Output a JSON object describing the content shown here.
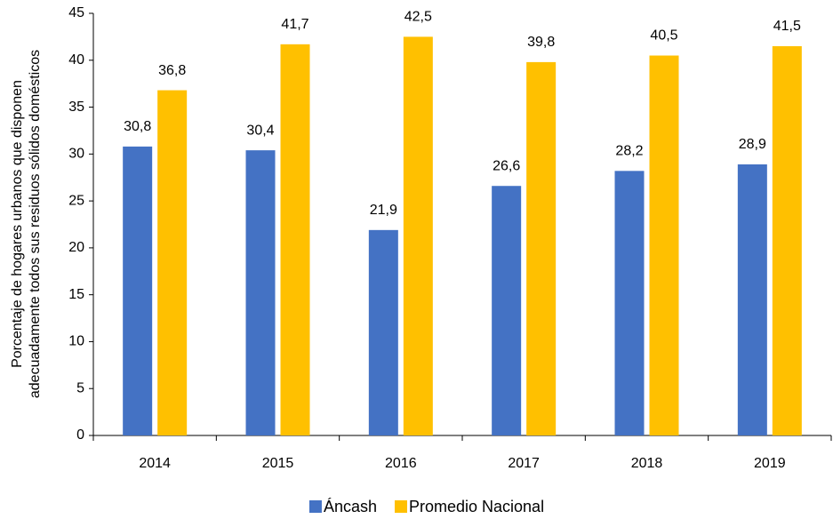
{
  "chart_data": {
    "type": "bar",
    "ylabel": [
      "Porcentaje de hogares urbanos que disponen",
      "adecuadamente todos sus residuos sólidos domésticos"
    ],
    "categories": [
      "2014",
      "2015",
      "2016",
      "2017",
      "2018",
      "2019"
    ],
    "series": [
      {
        "name": "Áncash",
        "color": "#4472c4",
        "values": [
          30.8,
          30.4,
          21.9,
          26.6,
          28.2,
          28.9
        ],
        "value_labels": [
          "30,8",
          "30,4",
          "21,9",
          "26,6",
          "28,2",
          "28,9"
        ]
      },
      {
        "name": "Promedio Nacional",
        "color": "#ffc000",
        "values": [
          36.8,
          41.7,
          42.5,
          39.8,
          40.5,
          41.5
        ],
        "value_labels": [
          "36,8",
          "41,7",
          "42,5",
          "39,8",
          "40,5",
          "41,5"
        ]
      }
    ],
    "ylim": [
      0,
      45
    ],
    "yticks": [
      0,
      5,
      10,
      15,
      20,
      25,
      30,
      35,
      40,
      45
    ],
    "legend": "bottom"
  }
}
